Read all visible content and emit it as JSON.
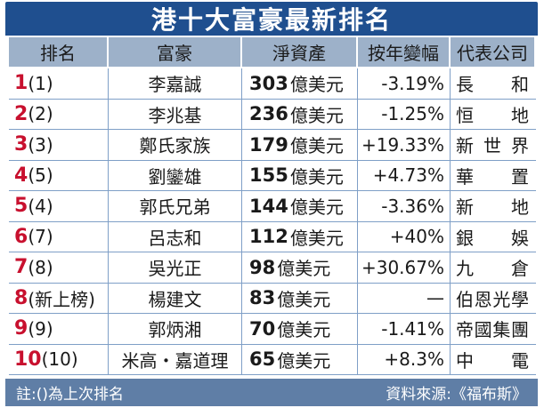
{
  "title": "港十大富豪最新排名",
  "headers": {
    "rank": "排名",
    "name": "富豪",
    "worth": "淨資產",
    "change": "按年變幅",
    "company": "代表公司"
  },
  "rows": [
    {
      "rank": "1",
      "prev": "(1)",
      "name": "李嘉誠",
      "worth": "303",
      "unit": "億美元",
      "change": "-3.19%",
      "company": [
        "長",
        "和"
      ]
    },
    {
      "rank": "2",
      "prev": "(2)",
      "name": "李兆基",
      "worth": "236",
      "unit": "億美元",
      "change": "-1.25%",
      "company": [
        "恒",
        "地"
      ]
    },
    {
      "rank": "3",
      "prev": "(3)",
      "name": "鄭氏家族",
      "worth": "179",
      "unit": "億美元",
      "change": "+19.33%",
      "company": [
        "新",
        "世",
        "界"
      ]
    },
    {
      "rank": "4",
      "prev": "(5)",
      "name": "劉鑾雄",
      "worth": "155",
      "unit": "億美元",
      "change": "+4.73%",
      "company": [
        "華",
        "置"
      ]
    },
    {
      "rank": "5",
      "prev": "(4)",
      "name": "郭氏兄弟",
      "worth": "144",
      "unit": "億美元",
      "change": "-3.36%",
      "company": [
        "新",
        "地"
      ]
    },
    {
      "rank": "6",
      "prev": "(7)",
      "name": "呂志和",
      "worth": "112",
      "unit": "億美元",
      "change": "+40%",
      "company": [
        "銀",
        "娛"
      ]
    },
    {
      "rank": "7",
      "prev": "(8)",
      "name": "吳光正",
      "worth": "98",
      "unit": "億美元",
      "change": "+30.67%",
      "company": [
        "九",
        "倉"
      ]
    },
    {
      "rank": "8",
      "prev": "(新上榜)",
      "name": "楊建文",
      "worth": "83",
      "unit": "億美元",
      "change": "—",
      "company": [
        "伯",
        "恩",
        "光",
        "學"
      ]
    },
    {
      "rank": "9",
      "prev": "(9)",
      "name": "郭炳湘",
      "worth": "70",
      "unit": "億美元",
      "change": "-1.41%",
      "company": [
        "帝",
        "國",
        "集",
        "團"
      ]
    },
    {
      "rank": "10",
      "prev": "(10)",
      "name": "米高・嘉道理",
      "worth": "65",
      "unit": "億美元",
      "change": "+8.3%",
      "company": [
        "中",
        "電"
      ]
    }
  ],
  "footer": {
    "note": "註:()為上次排名",
    "source": "資料來源:《福布斯》"
  },
  "colors": {
    "title_bg": "#1f4f8f",
    "header_bg": "#9db1c9",
    "rank_red": "#c8102e",
    "footer_bg": "#5f7ea6"
  }
}
